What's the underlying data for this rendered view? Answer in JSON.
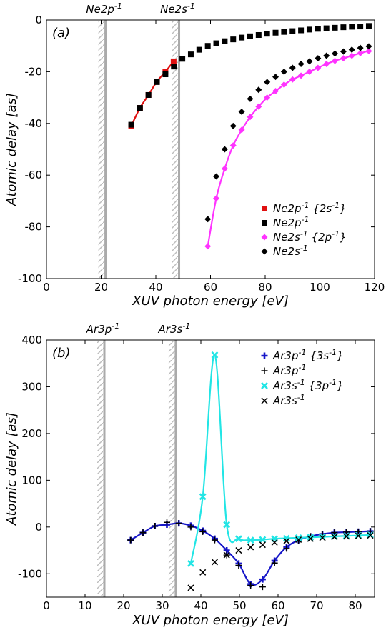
{
  "chart_data": [
    {
      "type": "scatter",
      "panel_label": "(a)",
      "xlabel": "XUV photon energy [eV]",
      "ylabel": "Atomic delay [as]",
      "xlim": [
        0,
        120
      ],
      "ylim": [
        -100,
        0
      ],
      "xticks": [
        0,
        20,
        40,
        60,
        80,
        100,
        120
      ],
      "yticks": [
        -100,
        -80,
        -60,
        -40,
        -20,
        0
      ],
      "legend_position": "bottom-right",
      "thresholds": [
        {
          "label": "Ne2p",
          "sup": "-1",
          "x": 21.6
        },
        {
          "label": "Ne2s",
          "sup": "-1",
          "x": 48.5
        }
      ],
      "series": [
        {
          "name": "Ne2p",
          "sup": "-1",
          "suffix": " {2s",
          "suffix_sup": "-1",
          "suffix_end": "}",
          "color": "#e01010",
          "marker": "square",
          "line": true,
          "x": [
            31,
            34.2,
            37.3,
            40.4,
            43.5,
            46.5
          ],
          "y": [
            -41,
            -34,
            -29,
            -23.8,
            -20,
            -16
          ]
        },
        {
          "name": "Ne2p",
          "sup": "-1",
          "color": "#000000",
          "marker": "square",
          "line": false,
          "x": [
            31,
            34.2,
            37.3,
            40.4,
            43.5,
            46.6,
            49.7,
            52.8,
            55.9,
            59,
            62.1,
            65.2,
            68.3,
            71.4,
            74.5,
            77.6,
            80.7,
            83.8,
            86.9,
            90,
            93.1,
            96.2,
            99.3,
            102.4,
            105.5,
            108.6,
            111.7,
            114.8,
            117.9
          ],
          "y": [
            -40.5,
            -34,
            -29,
            -24,
            -21,
            -18,
            -15,
            -13.3,
            -11.5,
            -10,
            -9,
            -8.2,
            -7.5,
            -6.8,
            -6.3,
            -5.8,
            -5.3,
            -4.9,
            -4.6,
            -4.3,
            -4,
            -3.7,
            -3.4,
            -3.2,
            -3,
            -2.8,
            -2.6,
            -2.5,
            -2.3
          ]
        },
        {
          "name": "Ne2s",
          "sup": "-1",
          "suffix": " {2p",
          "suffix_sup": "-1",
          "suffix_end": "}",
          "color": "#ff33ff",
          "marker": "diamond",
          "line": true,
          "x": [
            59,
            62.1,
            65.2,
            68.3,
            71.4,
            74.5,
            77.6,
            80.7,
            83.8,
            86.9,
            90,
            93.1,
            96.2,
            99.3,
            102.4,
            105.5,
            108.6,
            111.7,
            114.8,
            117.9
          ],
          "y": [
            -87.5,
            -69,
            -57.5,
            -48.5,
            -42.5,
            -37.5,
            -33.5,
            -30,
            -27.5,
            -25,
            -23,
            -21.5,
            -20,
            -18.5,
            -17,
            -15.8,
            -14.8,
            -13.8,
            -12.8,
            -12
          ]
        },
        {
          "name": "Ne2s",
          "sup": "-1",
          "color": "#000000",
          "marker": "diamond",
          "line": false,
          "x": [
            59,
            62.1,
            65.2,
            68.3,
            71.4,
            74.5,
            77.6,
            80.7,
            83.8,
            86.9,
            90,
            93.1,
            96.2,
            99.3,
            102.4,
            105.5,
            108.6,
            111.7,
            114.8,
            117.9
          ],
          "y": [
            -77,
            -60.5,
            -50,
            -41,
            -35.5,
            -30.5,
            -27,
            -24,
            -22,
            -20,
            -18.5,
            -17,
            -16,
            -14.8,
            -13.8,
            -13,
            -12.2,
            -11.5,
            -10.8,
            -10.2
          ]
        }
      ]
    },
    {
      "type": "scatter",
      "panel_label": "(b)",
      "xlabel": "XUV photon energy [eV]",
      "ylabel": "Atomic delay [as]",
      "xlim": [
        0,
        85
      ],
      "ylim": [
        -150,
        400
      ],
      "xticks": [
        0,
        10,
        20,
        30,
        40,
        50,
        60,
        70,
        80
      ],
      "yticks": [
        -100,
        0,
        100,
        200,
        300,
        400
      ],
      "legend_position": "top-right",
      "thresholds": [
        {
          "label": "Ar3p",
          "sup": "-1",
          "x": 15.0
        },
        {
          "label": "Ar3s",
          "sup": "-1",
          "x": 33.5
        }
      ],
      "series": [
        {
          "name": "Ar3p",
          "sup": "-1",
          "suffix": " {3s",
          "suffix_sup": "-1",
          "suffix_end": "}",
          "color": "#1515c8",
          "marker": "plus",
          "line": true,
          "x": [
            21.8,
            25,
            28.1,
            31.2,
            34.3,
            37.4,
            40.5,
            43.6,
            46.7,
            49.8,
            52.9,
            56,
            59.1,
            62.2,
            65.3,
            68.4,
            71.5,
            74.6,
            77.7,
            80.8,
            83.9
          ],
          "y": [
            -28,
            -12,
            2,
            5,
            8,
            3,
            -8,
            -25,
            -50,
            -78,
            -122,
            -112,
            -72,
            -43,
            -28,
            -20,
            -15,
            -12,
            -11,
            -10,
            -9
          ]
        },
        {
          "name": "Ar3p",
          "sup": "-1",
          "color": "#000000",
          "marker": "plus",
          "line": false,
          "x": [
            21.8,
            25,
            28.1,
            31.2,
            34.3,
            37.4,
            40.5,
            43.6,
            46.7,
            49.8,
            52.9,
            56,
            59.1,
            62.2,
            65.3,
            68.4,
            71.5,
            74.6,
            77.7,
            80.8,
            83.9
          ],
          "y": [
            -28,
            -12,
            2,
            10,
            8,
            0,
            -10,
            -28,
            -60,
            -82,
            -125,
            -128,
            -77,
            -46,
            -30,
            -20,
            -15,
            -12,
            -11,
            -10,
            -9
          ]
        },
        {
          "name": "Ar3s",
          "sup": "-1",
          "suffix": " {3p",
          "suffix_sup": "-1",
          "suffix_end": "}",
          "color": "#22e5e5",
          "marker": "cross",
          "line": true,
          "x": [
            37.4,
            40.5,
            43.6,
            46.7,
            49.8,
            52.9,
            56,
            59.1,
            62.2,
            65.3,
            68.4,
            71.5,
            74.6,
            77.7,
            80.8,
            83.9
          ],
          "y": [
            -78,
            65,
            368,
            5,
            -25,
            -28,
            -27,
            -25,
            -24,
            -23,
            -22,
            -21,
            -20,
            -19,
            -18,
            -17
          ]
        },
        {
          "name": "Ar3s",
          "sup": "-1",
          "color": "#000000",
          "marker": "cross",
          "line": false,
          "x": [
            37.4,
            40.5,
            43.6,
            46.7,
            49.8,
            52.9,
            56,
            59.1,
            62.2,
            65.3,
            68.4,
            71.5,
            74.6,
            77.7,
            80.8,
            83.9
          ],
          "y": [
            -130,
            -97,
            -75,
            -60,
            -50,
            -43,
            -38,
            -33,
            -30,
            -27,
            -25,
            -23,
            -21,
            -20,
            -19,
            -18
          ]
        }
      ]
    }
  ]
}
